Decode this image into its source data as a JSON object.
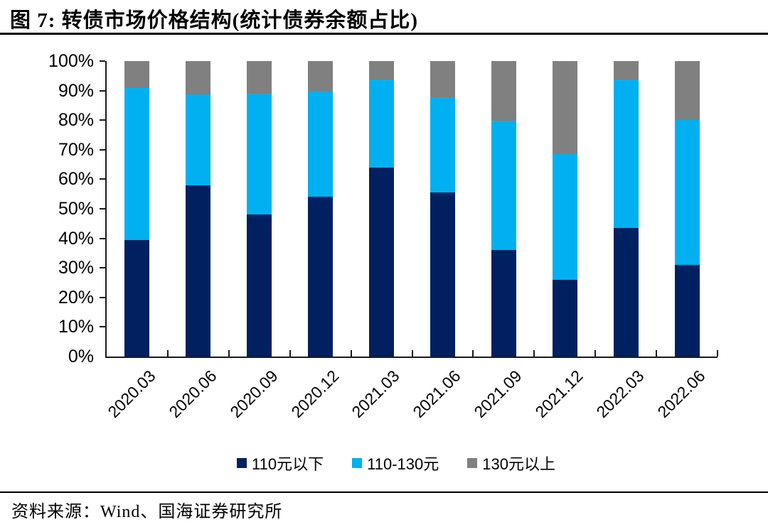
{
  "figure": {
    "title": "图 7:  转债市场价格结构(统计债券余额占比)",
    "source": "资料来源：Wind、国海证券研究所"
  },
  "chart_data": {
    "type": "bar",
    "stacked": true,
    "title": "转债市场价格结构(统计债券余额占比)",
    "categories": [
      "2020.03",
      "2020.06",
      "2020.09",
      "2020.12",
      "2021.03",
      "2021.06",
      "2021.09",
      "2021.12",
      "2022.03",
      "2022.06"
    ],
    "series": [
      {
        "name": "110元以下",
        "color": "#002060",
        "values": [
          39.5,
          58.0,
          48.0,
          54.0,
          64.0,
          55.5,
          36.0,
          26.0,
          43.5,
          31.0
        ]
      },
      {
        "name": "110-130元",
        "color": "#00B0F0",
        "values": [
          51.5,
          30.7,
          41.0,
          36.0,
          29.7,
          32.3,
          43.7,
          42.5,
          50.2,
          49.0
        ]
      },
      {
        "name": "130元以上",
        "color": "#808080",
        "values": [
          9.0,
          11.3,
          11.0,
          10.0,
          6.3,
          12.2,
          20.3,
          31.5,
          6.3,
          20.0
        ]
      }
    ],
    "xlabel": "",
    "ylabel": "",
    "ylim": [
      0,
      100
    ],
    "ytick_step": 10,
    "ytick_format": "percent",
    "x_label_rotation": 45,
    "legend_position": "bottom",
    "grid": false,
    "axis_color": "#1a1a1a"
  }
}
